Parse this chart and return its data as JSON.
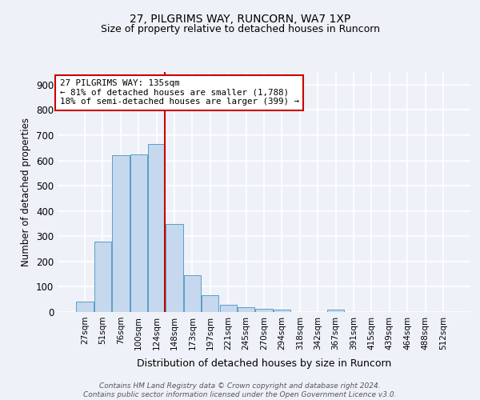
{
  "title1": "27, PILGRIMS WAY, RUNCORN, WA7 1XP",
  "title2": "Size of property relative to detached houses in Runcorn",
  "xlabel": "Distribution of detached houses by size in Runcorn",
  "ylabel": "Number of detached properties",
  "categories": [
    "27sqm",
    "51sqm",
    "76sqm",
    "100sqm",
    "124sqm",
    "148sqm",
    "173sqm",
    "197sqm",
    "221sqm",
    "245sqm",
    "270sqm",
    "294sqm",
    "318sqm",
    "342sqm",
    "367sqm",
    "391sqm",
    "415sqm",
    "439sqm",
    "464sqm",
    "488sqm",
    "512sqm"
  ],
  "values": [
    42,
    280,
    620,
    625,
    665,
    348,
    145,
    65,
    30,
    18,
    13,
    10,
    0,
    0,
    10,
    0,
    0,
    0,
    0,
    0,
    0
  ],
  "bar_color": "#c5d8ed",
  "bar_edge_color": "#5a9ec8",
  "annotation_text": "27 PILGRIMS WAY: 135sqm\n← 81% of detached houses are smaller (1,788)\n18% of semi-detached houses are larger (399) →",
  "annotation_box_color": "white",
  "annotation_box_edge": "#cc0000",
  "ylim": [
    0,
    950
  ],
  "yticks": [
    0,
    100,
    200,
    300,
    400,
    500,
    600,
    700,
    800,
    900
  ],
  "bg_color": "#eef2f8",
  "grid_color": "white",
  "footnote": "Contains HM Land Registry data © Crown copyright and database right 2024.\nContains public sector information licensed under the Open Government Licence v3.0."
}
